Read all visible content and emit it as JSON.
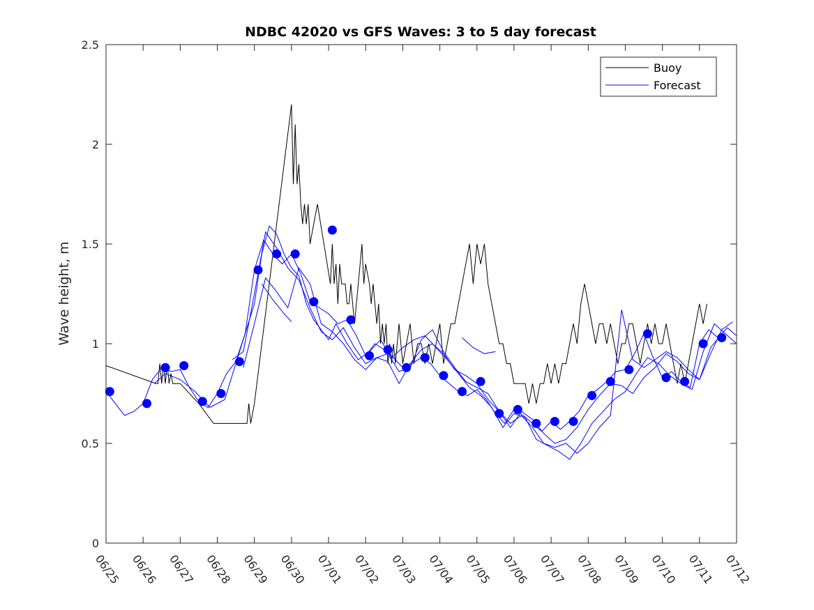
{
  "chart_data": {
    "type": "line",
    "title": "NDBC 42020 vs GFS Waves: 3 to 5 day forecast",
    "ylabel": "Wave height, m",
    "xlabel": "",
    "ylim": [
      0,
      2.5
    ],
    "xlim": [
      0,
      17
    ],
    "yticks": [
      0,
      0.5,
      1,
      1.5,
      2,
      2.5
    ],
    "ytick_labels": [
      "0",
      "0.5",
      "1",
      "1.5",
      "2",
      "2.5"
    ],
    "xticks": [
      0,
      1,
      2,
      3,
      4,
      5,
      6,
      7,
      8,
      9,
      10,
      11,
      12,
      13,
      14,
      15,
      16,
      17
    ],
    "xtick_labels": [
      "06/25",
      "06/26",
      "06/27",
      "06/28",
      "06/29",
      "06/30",
      "07/01",
      "07/02",
      "07/03",
      "07/04",
      "07/05",
      "07/06",
      "07/07",
      "07/08",
      "07/09",
      "07/10",
      "07/11",
      "07/12"
    ],
    "x_units": "days since 06/25 00:00",
    "grid": false,
    "legend": {
      "position": "top-right",
      "entries": [
        {
          "label": "Buoy",
          "color": "#000000"
        },
        {
          "label": "Forecast",
          "color": "#0000ff"
        }
      ]
    },
    "series": [
      {
        "name": "Buoy",
        "color": "#000000",
        "x": [
          0,
          1.35,
          1.4,
          1.45,
          1.5,
          1.55,
          1.6,
          1.65,
          1.7,
          1.75,
          1.8,
          1.85,
          2.0,
          2.5,
          2.9,
          3.0,
          3.8,
          3.85,
          3.9,
          4.0,
          5.0,
          5.05,
          5.1,
          5.15,
          5.2,
          5.25,
          5.3,
          5.35,
          5.4,
          5.45,
          5.5,
          5.55,
          5.6,
          5.7,
          6.05,
          6.1,
          6.15,
          6.2,
          6.25,
          6.3,
          6.35,
          6.4,
          6.45,
          6.5,
          6.55,
          6.6,
          6.65,
          6.7,
          6.8,
          6.85,
          6.9,
          6.95,
          7.0,
          7.1,
          7.15,
          7.2,
          7.25,
          7.3,
          7.35,
          7.4,
          7.45,
          7.5,
          7.55,
          7.6,
          7.65,
          7.7,
          7.75,
          7.8,
          7.9,
          8.0,
          8.1,
          8.2,
          8.3,
          8.4,
          8.5,
          8.6,
          8.7,
          8.8,
          8.9,
          9.0,
          9.1,
          9.2,
          9.3,
          9.4,
          9.5,
          9.6,
          9.7,
          9.8,
          9.9,
          10.0,
          10.1,
          10.2,
          10.3,
          10.4,
          10.5,
          10.6,
          10.7,
          10.8,
          10.9,
          11.0,
          11.1,
          11.2,
          11.3,
          11.4,
          11.5,
          11.6,
          11.7,
          11.8,
          11.9,
          12.0,
          12.1,
          12.2,
          12.3,
          12.4,
          12.5,
          12.6,
          12.7,
          12.8,
          12.9,
          13.0,
          13.1,
          13.2,
          13.3,
          13.4,
          13.5,
          13.6,
          13.7,
          13.8,
          13.9,
          14.0,
          14.1,
          14.2,
          14.3,
          14.4,
          14.5,
          14.6,
          14.7,
          14.8,
          14.9,
          15.0,
          15.1,
          15.2,
          15.3,
          15.4,
          15.5,
          15.6,
          15.7,
          15.8,
          15.9,
          16.0,
          16.1,
          16.2
        ],
        "values": [
          0.89,
          0.8,
          0.8,
          0.9,
          0.8,
          0.9,
          0.8,
          0.9,
          0.8,
          0.85,
          0.8,
          0.8,
          0.8,
          0.7,
          0.6,
          0.6,
          0.6,
          0.7,
          0.6,
          0.7,
          2.2,
          1.8,
          2.1,
          1.8,
          1.9,
          1.7,
          1.6,
          1.7,
          1.6,
          1.7,
          1.5,
          1.55,
          1.6,
          1.7,
          1.3,
          1.5,
          1.3,
          1.4,
          1.2,
          1.4,
          1.3,
          1.3,
          1.3,
          1.2,
          1.2,
          1.3,
          1.2,
          1.1,
          1.3,
          1.4,
          1.5,
          1.3,
          1.4,
          1.3,
          1.2,
          1.3,
          1.2,
          1.1,
          1.2,
          1.0,
          1.1,
          1.0,
          1.1,
          0.9,
          1.0,
          0.9,
          1.0,
          0.9,
          1.1,
          0.9,
          1.0,
          1.1,
          0.9,
          1.0,
          1.0,
          0.9,
          1.0,
          0.9,
          1.0,
          1.1,
          0.9,
          1.0,
          1.1,
          1.1,
          1.2,
          1.3,
          1.4,
          1.5,
          1.3,
          1.5,
          1.4,
          1.5,
          1.3,
          1.2,
          1.1,
          1.0,
          1.0,
          0.9,
          0.9,
          0.8,
          0.8,
          0.8,
          0.8,
          0.7,
          0.8,
          0.7,
          0.8,
          0.8,
          0.9,
          0.8,
          0.9,
          0.8,
          0.9,
          0.9,
          1.0,
          1.1,
          1.0,
          1.2,
          1.3,
          1.2,
          1.1,
          1.0,
          1.1,
          1.1,
          1.0,
          1.1,
          1.0,
          0.9,
          1.0,
          1.0,
          1.1,
          1.1,
          1.0,
          0.9,
          1.0,
          1.1,
          1.0,
          1.1,
          1.0,
          1.0,
          1.1,
          1.0,
          0.9,
          0.8,
          0.9,
          0.8,
          0.9,
          1.0,
          1.1,
          1.2,
          1.1,
          1.2
        ]
      },
      {
        "name": "Forecast",
        "color": "#0000ff",
        "x": [
          0,
          0.25,
          0.5,
          0.75,
          1.0,
          1.25,
          1.5,
          1.75,
          2.0,
          2.25,
          2.5,
          2.75,
          3.0,
          3.25,
          3.5,
          3.75,
          4.0,
          4.25,
          4.5,
          4.75,
          5.0,
          5.25,
          5.5,
          5.75,
          6.0,
          6.25,
          6.5,
          6.75,
          7.0,
          7.25,
          7.5,
          7.75,
          8.0,
          8.25,
          8.5,
          8.75,
          9.0,
          9.25,
          9.5,
          9.75,
          10.0,
          10.25,
          10.5,
          10.75,
          11.0,
          11.25,
          11.5,
          11.75,
          12.0,
          12.25,
          12.5,
          12.75,
          13.0,
          13.25,
          13.5,
          13.75,
          14.0,
          14.25,
          14.5,
          14.75,
          15.0,
          15.25,
          15.5,
          15.75,
          16.0,
          16.25,
          16.5,
          16.75,
          17.0
        ],
        "values": [
          0.76,
          0.7,
          0.64,
          0.66,
          0.7,
          0.82,
          0.88,
          0.86,
          0.87,
          0.78,
          0.71,
          0.68,
          0.75,
          0.85,
          0.91,
          1.05,
          1.37,
          1.52,
          1.45,
          1.4,
          1.45,
          1.35,
          1.21,
          1.18,
          1.15,
          1.1,
          1.12,
          1.04,
          0.94,
          1.0,
          0.97,
          0.93,
          0.88,
          0.9,
          0.93,
          0.9,
          0.84,
          0.8,
          0.76,
          0.74,
          0.77,
          0.72,
          0.65,
          0.6,
          0.67,
          0.64,
          0.6,
          0.56,
          0.61,
          0.57,
          0.61,
          0.66,
          0.74,
          0.77,
          0.81,
          0.86,
          0.87,
          0.95,
          1.05,
          0.93,
          0.83,
          0.86,
          0.81,
          0.78,
          1.0,
          1.07,
          1.03,
          1.08,
          1.04
        ]
      },
      {
        "name": "Forecast",
        "color": "#0000ff",
        "x": [
          1.3,
          1.6,
          2.0,
          2.4,
          2.8,
          3.2,
          3.6,
          4.0,
          4.2,
          4.4,
          4.6,
          4.8,
          5.0,
          5.2,
          5.4,
          5.6,
          5.8,
          6.0,
          6.2,
          6.5,
          6.8,
          7.1,
          7.4,
          7.7,
          8.0,
          8.3,
          8.6,
          8.9,
          9.2,
          9.5,
          9.8,
          10.1,
          10.4,
          10.7,
          11.0,
          11.3,
          11.6,
          11.9,
          12.2,
          12.5,
          12.8,
          13.1,
          13.4,
          13.7,
          14.0,
          14.3,
          14.6,
          14.9,
          15.2,
          15.5,
          15.8,
          16.1,
          16.4,
          16.7,
          17.0
        ],
        "values": [
          0.8,
          0.85,
          0.82,
          0.76,
          0.68,
          0.72,
          0.96,
          1.2,
          1.45,
          1.59,
          1.55,
          1.45,
          1.38,
          1.34,
          1.2,
          1.12,
          1.07,
          1.02,
          1.1,
          1.0,
          0.92,
          0.96,
          1.02,
          0.93,
          0.98,
          1.02,
          1.04,
          0.98,
          0.92,
          0.85,
          0.78,
          0.74,
          0.68,
          0.58,
          0.65,
          0.63,
          0.52,
          0.49,
          0.46,
          0.42,
          0.5,
          0.6,
          0.66,
          0.72,
          0.76,
          0.85,
          0.93,
          0.9,
          0.84,
          0.8,
          0.77,
          0.96,
          1.1,
          1.05,
          1.0
        ]
      },
      {
        "name": "Forecast",
        "color": "#0000ff",
        "x": [
          3.4,
          3.7,
          4.0,
          4.3,
          4.6,
          4.9,
          5.2,
          5.5,
          5.8,
          6.1,
          6.4,
          6.7,
          7.0,
          7.3,
          7.6,
          7.9,
          8.2,
          8.5,
          8.8,
          9.1,
          9.4,
          9.7,
          10.0,
          10.3,
          10.6,
          10.9,
          11.2,
          11.5,
          11.8,
          12.1,
          12.4,
          12.7,
          13.0,
          13.3,
          13.6,
          13.9,
          14.2,
          14.5,
          14.8,
          15.1,
          15.4,
          15.7,
          16.0,
          16.3,
          16.6
        ],
        "values": [
          0.92,
          0.96,
          1.25,
          1.56,
          1.48,
          1.38,
          1.32,
          1.18,
          1.06,
          1.02,
          1.08,
          0.98,
          0.9,
          0.93,
          0.95,
          0.86,
          0.88,
          1.02,
          1.07,
          0.96,
          0.88,
          0.81,
          0.78,
          0.75,
          0.66,
          0.6,
          0.64,
          0.58,
          0.5,
          0.48,
          0.5,
          0.45,
          0.5,
          0.58,
          0.64,
          1.17,
          0.92,
          0.88,
          0.92,
          0.96,
          0.93,
          0.87,
          0.82,
          0.98,
          1.05
        ]
      },
      {
        "name": "Forecast",
        "color": "#0000ff",
        "x": [
          3.7,
          4.0,
          4.3,
          4.6,
          4.9,
          5.2,
          5.5,
          5.8,
          6.1,
          6.4,
          6.7,
          7.0,
          7.3,
          7.6,
          7.9,
          8.2,
          8.5,
          8.8,
          9.1,
          9.4,
          9.7,
          10.0,
          10.3,
          10.6,
          10.9,
          11.2,
          11.5,
          11.8,
          12.1,
          12.4,
          12.7,
          13.0,
          13.3,
          13.6,
          13.9,
          14.2,
          14.5,
          14.8,
          15.1,
          15.4,
          15.7,
          16.0,
          16.3,
          16.6,
          16.9
        ],
        "values": [
          0.88,
          1.1,
          1.33,
          1.26,
          1.18,
          1.38,
          1.3,
          1.1,
          1.06,
          1.0,
          0.92,
          0.87,
          0.93,
          0.91,
          0.8,
          0.9,
          0.97,
          1.0,
          0.95,
          0.87,
          0.84,
          0.8,
          0.72,
          0.66,
          0.58,
          0.66,
          0.62,
          0.55,
          0.5,
          0.52,
          0.58,
          0.67,
          0.74,
          0.8,
          0.79,
          0.75,
          0.83,
          0.88,
          0.95,
          0.91,
          0.85,
          0.82,
          0.95,
          1.07,
          1.11
        ]
      },
      {
        "name": "Forecast",
        "color": "#0000ff",
        "x": [
          4.2,
          4.5,
          4.8,
          5.0
        ],
        "values": [
          1.3,
          1.22,
          1.15,
          1.11
        ]
      },
      {
        "name": "Forecast",
        "color": "#0000ff",
        "x": [
          9.6,
          9.9,
          10.2,
          10.5
        ],
        "values": [
          1.03,
          0.98,
          0.95,
          0.96
        ]
      }
    ],
    "markers": {
      "name": "Forecast",
      "color": "#0000ff",
      "x": [
        0.1,
        1.1,
        1.6,
        2.1,
        2.6,
        3.1,
        3.6,
        4.1,
        4.6,
        5.1,
        5.6,
        6.1,
        6.6,
        7.1,
        7.6,
        8.1,
        8.6,
        9.1,
        9.6,
        10.1,
        10.6,
        11.1,
        11.6,
        12.1,
        12.6,
        13.1,
        13.6,
        14.1,
        14.6,
        15.1,
        15.6,
        16.1,
        16.6
      ],
      "values": [
        0.76,
        0.7,
        0.88,
        0.89,
        0.71,
        0.75,
        0.91,
        1.37,
        1.45,
        1.45,
        1.21,
        1.57,
        1.12,
        0.94,
        0.97,
        0.88,
        0.93,
        0.84,
        0.76,
        0.81,
        0.65,
        0.67,
        0.6,
        0.61,
        0.61,
        0.74,
        0.81,
        0.87,
        1.05,
        0.83,
        0.81,
        1.0,
        1.03
      ]
    }
  }
}
